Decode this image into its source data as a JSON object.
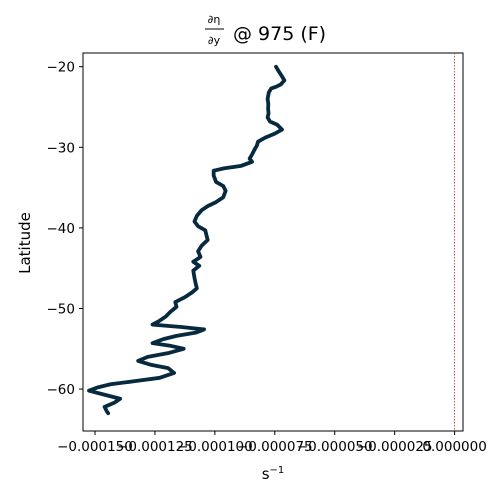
{
  "chart_data": {
    "type": "line",
    "title": {
      "numerator": "∂η",
      "denominator": "∂y",
      "suffix": "@ 975 (F)"
    },
    "xlabel": "s",
    "xlabel_exponent": "−1",
    "ylabel": "Latitude",
    "xlim": [
      -0.000155,
      3.5e-06
    ],
    "ylim": [
      -65.2,
      -18.3
    ],
    "grid": false,
    "x_ticks": [
      {
        "value": -0.00015,
        "label": "−0.000150"
      },
      {
        "value": -0.000125,
        "label": "−0.000125"
      },
      {
        "value": -0.0001,
        "label": "−0.000100"
      },
      {
        "value": -7.5e-05,
        "label": "−0.000075"
      },
      {
        "value": -5e-05,
        "label": "−0.000050"
      },
      {
        "value": -2.5e-05,
        "label": "−0.000025"
      },
      {
        "value": 0.0,
        "label": "0.000000"
      }
    ],
    "y_ticks": [
      {
        "value": -20,
        "label": "−20"
      },
      {
        "value": -30,
        "label": "−30"
      },
      {
        "value": -40,
        "label": "−40"
      },
      {
        "value": -50,
        "label": "−50"
      },
      {
        "value": -60,
        "label": "−60"
      }
    ],
    "reference_line": {
      "x": 0.0,
      "color": "#d62728",
      "style": "dotted"
    },
    "series": [
      {
        "color": "#082a3f",
        "points": [
          [
            -7.45e-05,
            -20.0
          ],
          [
            -7.35e-05,
            -20.5
          ],
          [
            -7.2e-05,
            -21.2
          ],
          [
            -7.1e-05,
            -21.7
          ],
          [
            -7.25e-05,
            -22.2
          ],
          [
            -7.45e-05,
            -22.5
          ],
          [
            -7.65e-05,
            -22.7
          ],
          [
            -7.75e-05,
            -23.2
          ],
          [
            -7.8e-05,
            -24.0
          ],
          [
            -7.77e-05,
            -24.6
          ],
          [
            -7.78e-05,
            -25.2
          ],
          [
            -7.76e-05,
            -25.8
          ],
          [
            -7.8e-05,
            -26.3
          ],
          [
            -7.7e-05,
            -26.8
          ],
          [
            -7.4e-05,
            -27.2
          ],
          [
            -7.2e-05,
            -27.8
          ],
          [
            -7.5e-05,
            -28.3
          ],
          [
            -7.9e-05,
            -28.8
          ],
          [
            -8.2e-05,
            -29.3
          ],
          [
            -8.25e-05,
            -29.8
          ],
          [
            -8.35e-05,
            -30.3
          ],
          [
            -8.45e-05,
            -30.9
          ],
          [
            -8.55e-05,
            -31.4
          ],
          [
            -8.45e-05,
            -31.8
          ],
          [
            -8.9e-05,
            -32.3
          ],
          [
            -9.6e-05,
            -32.6
          ],
          [
            -0.0001005,
            -32.9
          ],
          [
            -0.0001005,
            -33.5
          ],
          [
            -9.95e-05,
            -34.3
          ],
          [
            -9.65e-05,
            -34.8
          ],
          [
            -9.55e-05,
            -35.4
          ],
          [
            -9.65e-05,
            -36.2
          ],
          [
            -9.95e-05,
            -36.8
          ],
          [
            -0.000103,
            -37.3
          ],
          [
            -0.0001055,
            -37.8
          ],
          [
            -0.0001075,
            -38.5
          ],
          [
            -0.0001085,
            -39.2
          ],
          [
            -0.000107,
            -39.8
          ],
          [
            -0.000104,
            -40.3
          ],
          [
            -0.0001035,
            -40.9
          ],
          [
            -0.000103,
            -41.5
          ],
          [
            -0.0001055,
            -42.2
          ],
          [
            -0.000107,
            -42.9
          ],
          [
            -0.000106,
            -43.6
          ],
          [
            -0.000109,
            -44.2
          ],
          [
            -0.0001065,
            -44.7
          ],
          [
            -0.000109,
            -45.3
          ],
          [
            -0.0001085,
            -46.2
          ],
          [
            -0.000108,
            -46.9
          ],
          [
            -0.0001075,
            -47.5
          ],
          [
            -0.0001095,
            -48.0
          ],
          [
            -0.0001125,
            -48.6
          ],
          [
            -0.0001165,
            -49.2
          ],
          [
            -0.000116,
            -49.8
          ],
          [
            -0.0001185,
            -50.4
          ],
          [
            -0.0001205,
            -51.0
          ],
          [
            -0.0001235,
            -51.6
          ],
          [
            -0.000126,
            -52.0
          ],
          [
            -0.000114,
            -52.3
          ],
          [
            -0.0001045,
            -52.6
          ],
          [
            -0.000108,
            -53.0
          ],
          [
            -0.000116,
            -53.4
          ],
          [
            -0.0001215,
            -53.8
          ],
          [
            -0.000126,
            -54.3
          ],
          [
            -0.000119,
            -54.6
          ],
          [
            -0.000113,
            -55.0
          ],
          [
            -0.000119,
            -55.5
          ],
          [
            -0.000128,
            -56.0
          ],
          [
            -0.000132,
            -56.5
          ],
          [
            -0.0001265,
            -57.0
          ],
          [
            -0.0001195,
            -57.4
          ],
          [
            -0.000117,
            -58.0
          ],
          [
            -0.000123,
            -58.6
          ],
          [
            -0.000133,
            -59.0
          ],
          [
            -0.0001435,
            -59.4
          ],
          [
            -0.000149,
            -59.8
          ],
          [
            -0.0001525,
            -60.2
          ],
          [
            -0.000146,
            -60.7
          ],
          [
            -0.0001395,
            -61.2
          ],
          [
            -0.000142,
            -61.7
          ],
          [
            -0.000146,
            -62.2
          ],
          [
            -0.000145,
            -62.8
          ],
          [
            -0.0001445,
            -63.0
          ]
        ]
      }
    ]
  }
}
